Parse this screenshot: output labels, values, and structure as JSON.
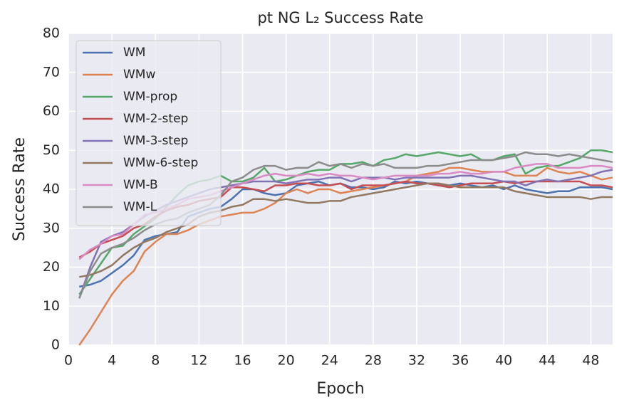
{
  "chart_data": {
    "type": "line",
    "title": "pt NG L₂ Success Rate",
    "x_label": "Epoch",
    "y_label": "Success Rate",
    "x": [
      1,
      2,
      3,
      4,
      5,
      6,
      7,
      8,
      9,
      10,
      11,
      12,
      13,
      14,
      15,
      16,
      17,
      18,
      19,
      20,
      21,
      22,
      23,
      24,
      25,
      26,
      27,
      28,
      29,
      30,
      31,
      32,
      33,
      34,
      35,
      36,
      37,
      38,
      39,
      40,
      41,
      42,
      43,
      44,
      45,
      46,
      47,
      48,
      49,
      50
    ],
    "xlim": [
      0,
      50
    ],
    "xticks": [
      0,
      4,
      8,
      12,
      16,
      20,
      24,
      28,
      32,
      36,
      40,
      44,
      48
    ],
    "ylim": [
      0,
      80
    ],
    "yticks": [
      0,
      10,
      20,
      30,
      40,
      50,
      60,
      70,
      80
    ],
    "grid": true,
    "legend": "upper left",
    "series": [
      {
        "name": "WM",
        "color": "#4c72b0",
        "values": [
          15,
          15.5,
          16.5,
          18.5,
          20.5,
          23,
          27,
          28,
          28.5,
          29,
          33,
          34,
          35,
          35.5,
          37.5,
          40,
          40,
          39,
          38.5,
          39,
          41,
          41.5,
          42,
          41,
          41.5,
          40.5,
          40.5,
          40,
          40.5,
          42,
          41.5,
          42,
          41.5,
          41,
          41,
          41.5,
          41,
          40.5,
          41,
          40,
          41,
          40,
          39.5,
          39,
          39.5,
          39.5,
          40.5,
          40.5,
          40.5,
          40
        ]
      },
      {
        "name": "WMw",
        "color": "#dd8452",
        "values": [
          0,
          4,
          8.5,
          13,
          16.5,
          19,
          24,
          26.5,
          28.5,
          28.5,
          29.5,
          31,
          32,
          33,
          33.5,
          34,
          34,
          35,
          36.5,
          39,
          40,
          39,
          40,
          40,
          39,
          39.5,
          40,
          40.5,
          41,
          41.5,
          42,
          43.5,
          44,
          44.5,
          45.5,
          45.5,
          45,
          44.5,
          44.5,
          44.5,
          43.5,
          43.5,
          43.5,
          45.5,
          44.5,
          44,
          44.5,
          43.5,
          42.5,
          43
        ]
      },
      {
        "name": "WM-prop",
        "color": "#55a868",
        "values": [
          13,
          17,
          21,
          25,
          25.5,
          28.5,
          30.5,
          32.5,
          35.5,
          38.5,
          41,
          42,
          42.5,
          43.5,
          42,
          42,
          43,
          45.5,
          42,
          42.5,
          43.5,
          44.5,
          45,
          45,
          46.5,
          46.5,
          47,
          46,
          47.5,
          48,
          49,
          48.5,
          49,
          49.5,
          49,
          48.5,
          49,
          47.5,
          47.5,
          48.5,
          49,
          44,
          45.5,
          46,
          46,
          47,
          48,
          50,
          50,
          49.5
        ]
      },
      {
        "name": "WM-2-step",
        "color": "#c44e52",
        "values": [
          22.5,
          24,
          26,
          27,
          28,
          30,
          31,
          33,
          34.5,
          35.5,
          36,
          37,
          37.5,
          38,
          40.5,
          40.5,
          40,
          39.5,
          41,
          41,
          41.5,
          41.5,
          41,
          41,
          41.5,
          40,
          41,
          41,
          41,
          41.5,
          42,
          41.5,
          41.5,
          41,
          40.5,
          41,
          41.5,
          41.5,
          41.5,
          42,
          41.5,
          42,
          42,
          42,
          42,
          42,
          42,
          41,
          41,
          40.5
        ]
      },
      {
        "name": "WM-3-step",
        "color": "#8172b3",
        "values": [
          12,
          20,
          26.5,
          28,
          29,
          31,
          33,
          34.5,
          36,
          37,
          38,
          39,
          40,
          40.5,
          41,
          41.5,
          42,
          42,
          42,
          41.5,
          42,
          42.5,
          42.5,
          43,
          43,
          42,
          43,
          43,
          43,
          42.5,
          43,
          43,
          43,
          43,
          43,
          43.5,
          43.5,
          43,
          42.5,
          42,
          42,
          41,
          42,
          42.5,
          42,
          42.5,
          43,
          43.5,
          44.5,
          45
        ]
      },
      {
        "name": "WMw-6-step",
        "color": "#937860",
        "values": [
          17.5,
          18,
          19,
          20.5,
          23,
          25,
          26.5,
          27.5,
          29,
          30,
          31,
          33,
          34,
          34.5,
          35.5,
          36,
          37.5,
          37.5,
          37,
          37.5,
          37,
          36.5,
          36.5,
          37,
          37,
          38,
          38.5,
          39,
          39.5,
          40,
          40.5,
          41,
          41.5,
          41.5,
          41,
          40.5,
          40.5,
          40.5,
          40.5,
          40.5,
          39.5,
          39,
          38.5,
          38,
          38,
          38,
          38,
          37.5,
          38,
          38
        ]
      },
      {
        "name": "WM-B",
        "color": "#da8bc3",
        "values": [
          22,
          24.5,
          26,
          28,
          28.5,
          31,
          33.5,
          34,
          35,
          36,
          37.5,
          38,
          38.5,
          39.5,
          40.5,
          41.5,
          42.5,
          43.5,
          44,
          43.5,
          43.5,
          44,
          43.5,
          44,
          43.5,
          43.5,
          43,
          42.5,
          43,
          43.5,
          43.5,
          43.5,
          43.5,
          44,
          44,
          44.5,
          44,
          44,
          44.5,
          44.5,
          45.5,
          46,
          46.5,
          46.5,
          45.5,
          45.5,
          45.5,
          46,
          46,
          45.5
        ]
      },
      {
        "name": "WM-L",
        "color": "#8c8c8c",
        "values": [
          12,
          19,
          23.5,
          25,
          26,
          27.5,
          29.5,
          31,
          32,
          32.5,
          34,
          35,
          36,
          38.5,
          42,
          43,
          45,
          46,
          46,
          45,
          45.5,
          45.5,
          47,
          46,
          46.5,
          45.5,
          46.5,
          46,
          46.5,
          45.5,
          45.5,
          45.5,
          46,
          46,
          46.5,
          47,
          47.5,
          47.5,
          47.5,
          48,
          48.5,
          49.5,
          49,
          49,
          48.5,
          49,
          48.5,
          48,
          47.5,
          47
        ]
      }
    ]
  }
}
